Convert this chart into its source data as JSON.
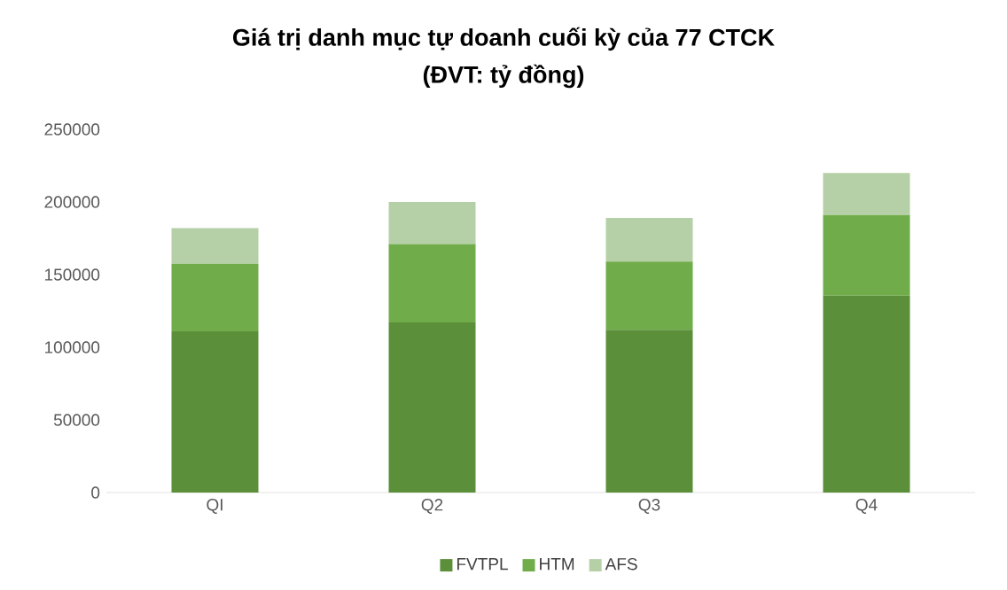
{
  "chart_data": {
    "type": "bar",
    "stacked": true,
    "title": "Giá trị danh mục tự doanh cuối kỳ của 77 CTCK",
    "subtitle": "(ĐVT: tỷ đồng)",
    "categories": [
      "QI",
      "Q2",
      "Q3",
      "Q4"
    ],
    "series": [
      {
        "name": "FVTPL",
        "color": "#5b8f3a",
        "values": [
          111000,
          117000,
          112000,
          135500
        ]
      },
      {
        "name": "HTM",
        "color": "#71ac4a",
        "values": [
          46500,
          54000,
          47000,
          55500
        ]
      },
      {
        "name": "AFS",
        "color": "#b5d0a7",
        "values": [
          24500,
          29000,
          30000,
          29000
        ]
      }
    ],
    "ylim": [
      0,
      250000
    ],
    "yticks": [
      0,
      50000,
      100000,
      150000,
      200000,
      250000
    ],
    "legend": "bottom"
  }
}
